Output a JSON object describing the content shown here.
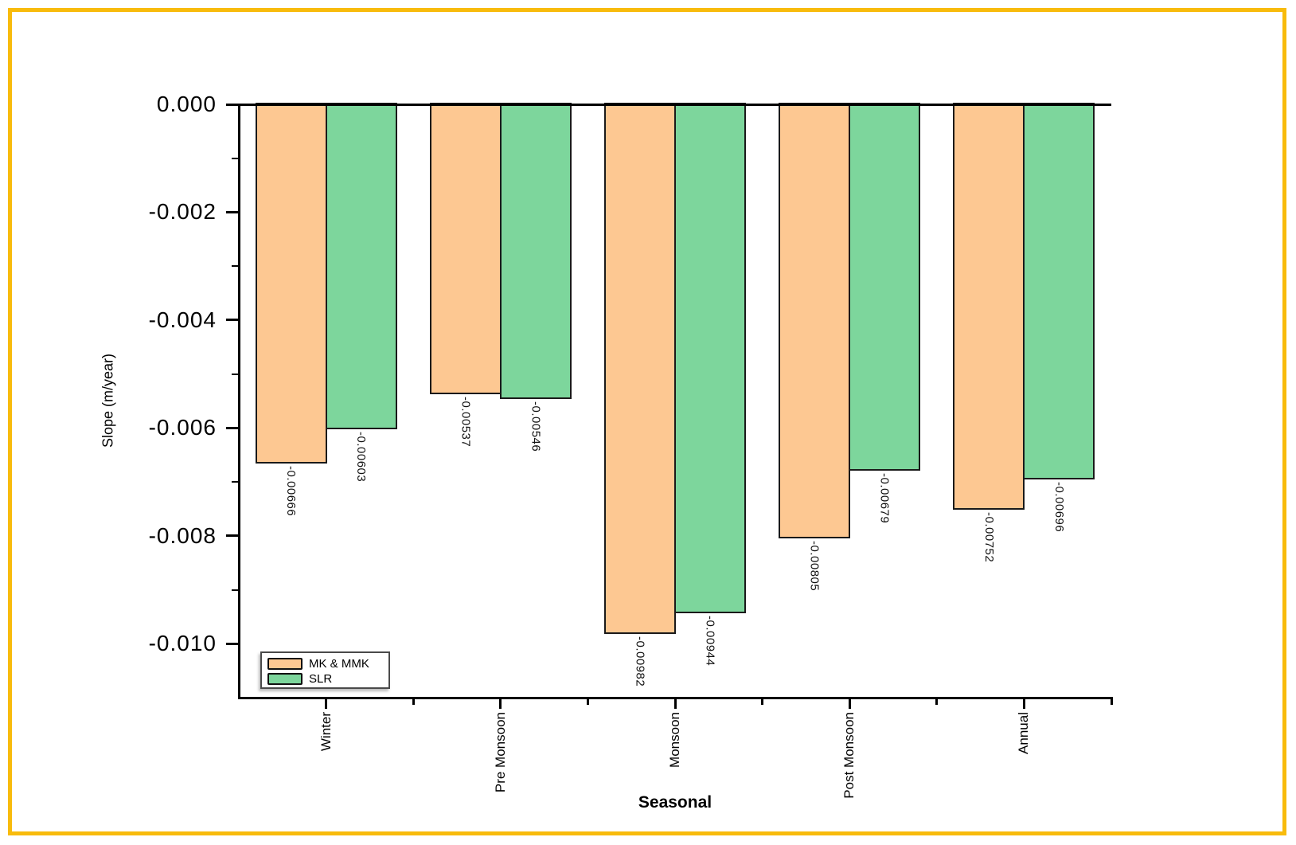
{
  "figure": {
    "frame_color": "#F8BB0C",
    "background": "#FFFFFF"
  },
  "chart_data": {
    "type": "bar",
    "title": "",
    "xlabel": "Seasonal",
    "ylabel": "Slope (m/year)",
    "categories": [
      "Winter",
      "Pre Monsoon",
      "Monsoon",
      "Post Monsoon",
      "Annual"
    ],
    "series": [
      {
        "name": "MK & MMK",
        "color": "#FDC892",
        "values": [
          -0.00666,
          -0.00537,
          -0.00982,
          -0.00805,
          -0.00752
        ],
        "value_labels": [
          "-0.00666",
          "-0.00537",
          "-0.00982",
          "-0.00805",
          "-0.00752"
        ]
      },
      {
        "name": "SLR",
        "color": "#7DD69C",
        "values": [
          -0.00603,
          -0.00546,
          -0.00944,
          -0.00679,
          -0.00696
        ],
        "value_labels": [
          "-0.00603",
          "-0.00546",
          "-0.00944",
          "-0.00679",
          "-0.00696"
        ]
      }
    ],
    "ylim": [
      0,
      -0.011
    ],
    "yticks_major": [
      0,
      -0.002,
      -0.004,
      -0.006,
      -0.008,
      -0.01
    ],
    "ytick_labels": [
      "0.000",
      "-0.002",
      "-0.004",
      "-0.006",
      "-0.008",
      "-0.010"
    ],
    "yticks_minor": [
      -0.001,
      -0.003,
      -0.005,
      -0.007,
      -0.009
    ],
    "grid": false,
    "legend_position": "bottom-left",
    "bar_outline_color": "#1A1A1A",
    "axis_color": "#000000"
  }
}
